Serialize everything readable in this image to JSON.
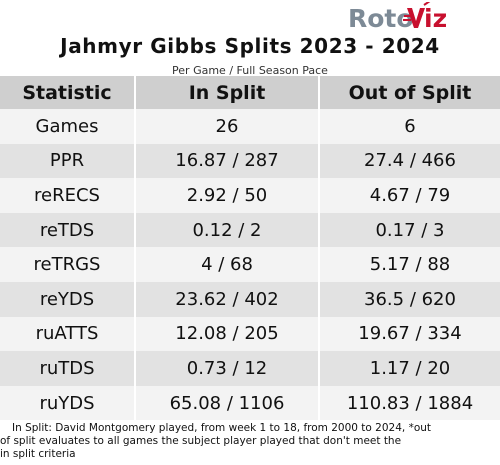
{
  "brand": {
    "logo_text_roto": "Roto",
    "logo_text_viz": "iz",
    "color_roto": "#7d8a96",
    "color_viz": "#c8102e"
  },
  "title": "Jahmyr Gibbs Splits 2023 - 2024",
  "subtitle": "Per Game / Full Season Pace",
  "table": {
    "headers": [
      "Statistic",
      "In Split",
      "Out of Split"
    ],
    "rows": [
      {
        "stat": "Games",
        "in_split": "26",
        "out_split": "6"
      },
      {
        "stat": "PPR",
        "in_split": "16.87 / 287",
        "out_split": "27.4 / 466"
      },
      {
        "stat": "reRECS",
        "in_split": "2.92 / 50",
        "out_split": "4.67 / 79"
      },
      {
        "stat": "reTDS",
        "in_split": "0.12 / 2",
        "out_split": "0.17 / 3"
      },
      {
        "stat": "reTRGS",
        "in_split": "4 / 68",
        "out_split": "5.17 / 88"
      },
      {
        "stat": "reYDS",
        "in_split": "23.62 / 402",
        "out_split": "36.5 / 620"
      },
      {
        "stat": "ruATTS",
        "in_split": "12.08 / 205",
        "out_split": "19.67 / 334"
      },
      {
        "stat": "ruTDS",
        "in_split": "0.73 / 12",
        "out_split": "1.17 / 20"
      },
      {
        "stat": "ruYDS",
        "in_split": "65.08 / 1106",
        "out_split": "110.83 / 1884"
      }
    ]
  },
  "footnote": {
    "line1": "In Split: David Montgomery played, from week 1 to 18, from 2000 to 2024,  *out",
    "line2": "of split evaluates to all games the subject player played that don't meet the",
    "line3": "in split criteria"
  }
}
